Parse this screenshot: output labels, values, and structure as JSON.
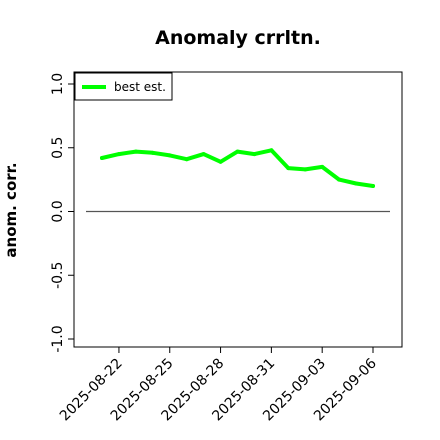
{
  "chart_data": {
    "type": "line",
    "title": "Anomaly crrltn.",
    "xlabel": "",
    "ylabel": "anom. corr.",
    "ylim": [
      -1.0,
      1.0
    ],
    "yticks": [
      "-1.0",
      "-0.5",
      "0.0",
      "0.5",
      "1.0"
    ],
    "ytick_values": [
      -1.0,
      -0.5,
      0.0,
      0.5,
      1.0
    ],
    "xticks": [
      "2025-08-22",
      "2025-08-25",
      "2025-08-28",
      "2025-08-31",
      "2025-09-03",
      "2025-09-06"
    ],
    "x": [
      "2025-08-21",
      "2025-08-22",
      "2025-08-23",
      "2025-08-24",
      "2025-08-25",
      "2025-08-26",
      "2025-08-27",
      "2025-08-28",
      "2025-08-29",
      "2025-08-30",
      "2025-08-31",
      "2025-09-01",
      "2025-09-02",
      "2025-09-03",
      "2025-09-04",
      "2025-09-05",
      "2025-09-06"
    ],
    "series": [
      {
        "name": "best est.",
        "color": "#00ff00",
        "values": [
          0.42,
          0.45,
          0.47,
          0.46,
          0.44,
          0.41,
          0.45,
          0.39,
          0.47,
          0.45,
          0.48,
          0.34,
          0.33,
          0.35,
          0.25,
          0.22,
          0.2
        ]
      }
    ],
    "reference_line": {
      "y": 0.0,
      "color": "#555555"
    },
    "legend_position": "top-left",
    "grid": false
  }
}
